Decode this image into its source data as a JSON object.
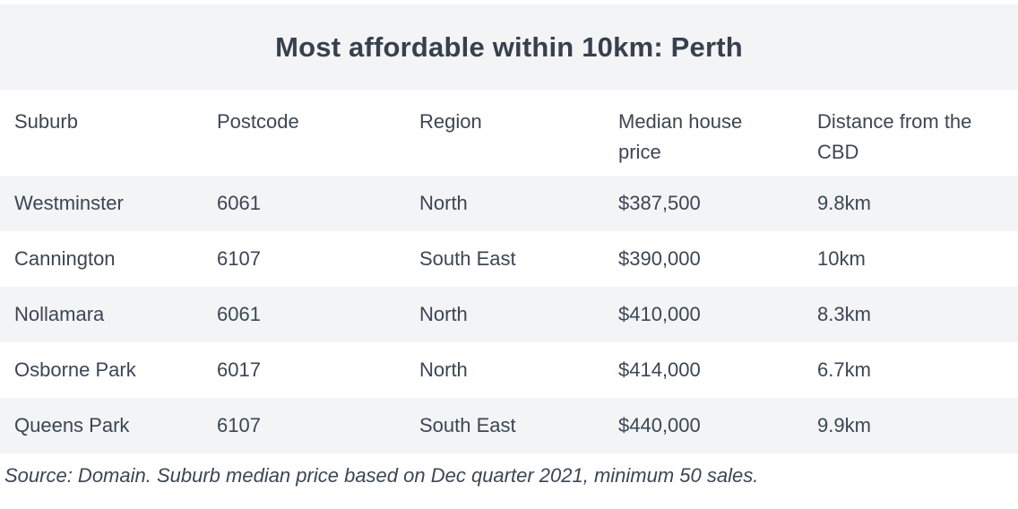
{
  "title": "Most affordable within 10km: Perth",
  "colors": {
    "background": "#ffffff",
    "stripe": "#f2f4f6",
    "text": "#3c4653",
    "title_text": "#38404e"
  },
  "chart_data": {
    "type": "table",
    "title": "Most affordable within 10km: Perth",
    "columns": [
      "Suburb",
      "Postcode",
      "Region",
      "Median house price",
      "Distance from the CBD"
    ],
    "rows": [
      [
        "Westminster",
        "6061",
        "North",
        "$387,500",
        "9.8km"
      ],
      [
        "Cannington",
        "6107",
        "South East",
        "$390,000",
        "10km"
      ],
      [
        "Nollamara",
        "6061",
        "North",
        "$410,000",
        "8.3km"
      ],
      [
        "Osborne Park",
        "6017",
        "North",
        "$414,000",
        "6.7km"
      ],
      [
        "Queens Park",
        "6107",
        "South East",
        "$440,000",
        "9.9km"
      ]
    ],
    "source": "Source: Domain. Suburb median price based on Dec quarter 2021, minimum 50 sales."
  }
}
